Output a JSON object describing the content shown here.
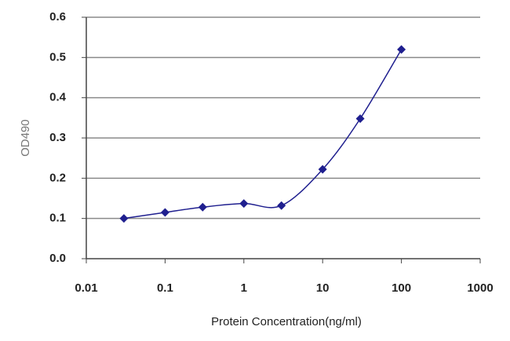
{
  "chart_data": {
    "type": "line",
    "x_label": "Protein Concentration(ng/ml)",
    "y_label": "OD490",
    "x": [
      0.03,
      0.1,
      0.3,
      1,
      3,
      10,
      30,
      100
    ],
    "series": [
      {
        "color": "#1f1f8f",
        "values": [
          0.1,
          0.115,
          0.128,
          0.137,
          0.132,
          0.222,
          0.348,
          0.52
        ]
      }
    ],
    "xscale": "log",
    "xlim": [
      0.01,
      1000
    ],
    "xticks": [
      0.01,
      0.1,
      1,
      10,
      100,
      1000
    ],
    "ylim": [
      0,
      0.6
    ],
    "yticks": [
      {
        "value": 0,
        "label": "0.0"
      },
      0.1,
      0.2,
      0.3,
      0.4,
      0.5,
      0.6
    ],
    "grid": true
  }
}
